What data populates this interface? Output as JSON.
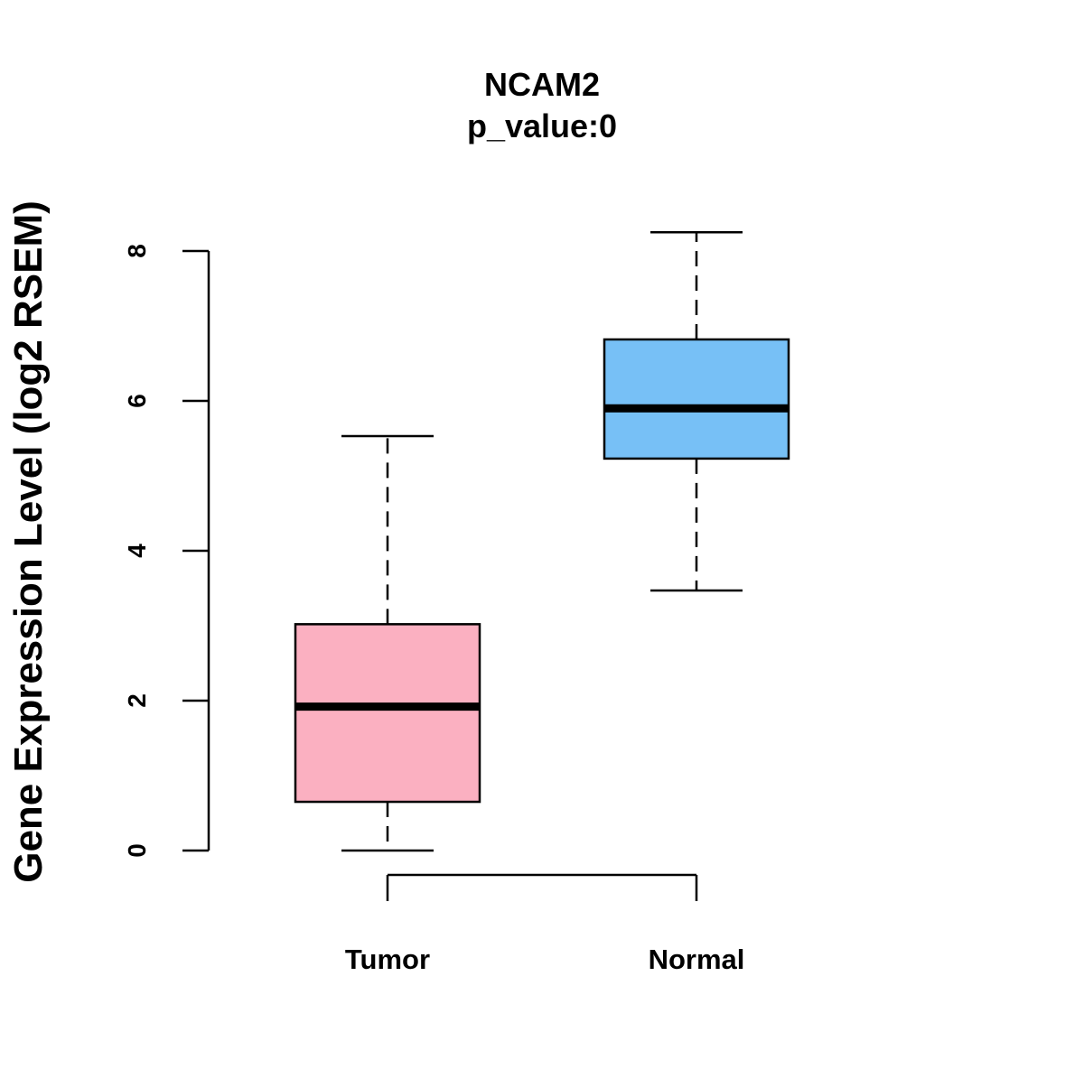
{
  "chart_data": {
    "type": "boxplot",
    "title": "NCAM2",
    "subtitle": "p_value:0",
    "xlabel": "",
    "ylabel": "Gene Expression Level (log2 RSEM)",
    "ylim": [
      0,
      8.25
    ],
    "yticks": [
      0,
      2,
      4,
      6,
      8
    ],
    "categories": [
      "Tumor",
      "Normal"
    ],
    "series": [
      {
        "name": "Tumor",
        "color": "#FBB0C1",
        "whisker_low": 0,
        "q1": 0.65,
        "median": 1.92,
        "q3": 3.02,
        "whisker_high": 5.53
      },
      {
        "name": "Normal",
        "color": "#77C0F6",
        "whisker_low": 3.47,
        "q1": 5.23,
        "median": 5.9,
        "q3": 6.82,
        "whisker_high": 8.25
      }
    ],
    "comparison_bracket": [
      "Tumor",
      "Normal"
    ],
    "grid": false,
    "legend": "none"
  }
}
